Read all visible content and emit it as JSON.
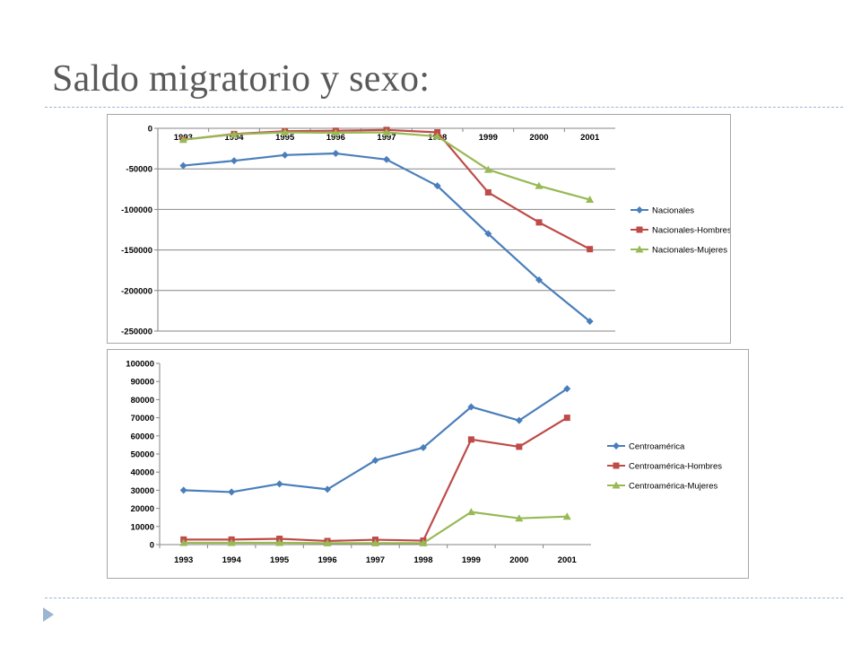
{
  "slide": {
    "title": "Saldo migratorio y sexo:",
    "bullet_icon": "triangle-right-icon",
    "accent_color": "#9db6cf"
  },
  "chart_data": [
    {
      "type": "line",
      "title": "",
      "xlabel": "",
      "ylabel": "",
      "x": [
        "1993",
        "1994",
        "1995",
        "1996",
        "1997",
        "1998",
        "1999",
        "2000",
        "2001"
      ],
      "ylim": [
        -250000,
        0
      ],
      "yticks": [
        0,
        -50000,
        -100000,
        -150000,
        -200000,
        -250000
      ],
      "x_axis_position": "top",
      "grid": true,
      "legend_position": "right",
      "series": [
        {
          "name": "Nacionales",
          "color": "#4a7ebb",
          "marker": "diamond",
          "values": [
            -46000,
            -40000,
            -33000,
            -31000,
            -38500,
            -71000,
            -130000,
            -187000,
            -238000
          ]
        },
        {
          "name": "Nacionales-Hombres",
          "color": "#be4b48",
          "marker": "square",
          "values": [
            -14000,
            -7000,
            -3500,
            -3000,
            -2000,
            -5000,
            -79000,
            -116000,
            -149000
          ]
        },
        {
          "name": "Nacionales-Mujeres",
          "color": "#98b954",
          "marker": "triangle",
          "values": [
            -14000,
            -7500,
            -5000,
            -5500,
            -5000,
            -10000,
            -51000,
            -71000,
            -88000
          ]
        }
      ]
    },
    {
      "type": "line",
      "title": "",
      "xlabel": "",
      "ylabel": "",
      "x": [
        "1993",
        "1994",
        "1995",
        "1996",
        "1997",
        "1998",
        "1999",
        "2000",
        "2001"
      ],
      "ylim": [
        0,
        100000
      ],
      "yticks": [
        0,
        10000,
        20000,
        30000,
        40000,
        50000,
        60000,
        70000,
        80000,
        90000,
        100000
      ],
      "x_axis_position": "bottom",
      "grid": false,
      "legend_position": "right",
      "series": [
        {
          "name": "Centroamérica",
          "color": "#4a7ebb",
          "marker": "diamond",
          "values": [
            30000,
            29000,
            33500,
            30500,
            46500,
            53500,
            76000,
            68500,
            86000
          ]
        },
        {
          "name": "Centroamérica-Hombres",
          "color": "#be4b48",
          "marker": "square",
          "values": [
            2800,
            2800,
            3200,
            2000,
            2700,
            2200,
            58000,
            54000,
            70000
          ]
        },
        {
          "name": "Centroamérica-Mujeres",
          "color": "#98b954",
          "marker": "triangle",
          "values": [
            1000,
            1000,
            1000,
            800,
            800,
            800,
            18000,
            14500,
            15500
          ]
        }
      ]
    }
  ]
}
